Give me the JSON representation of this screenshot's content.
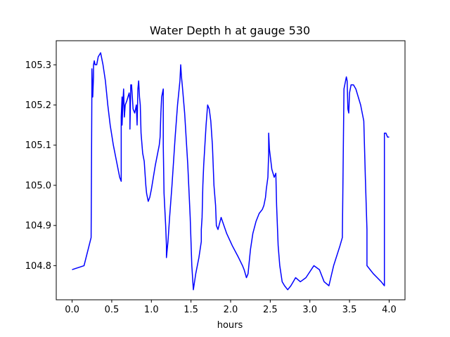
{
  "chart_data": {
    "type": "line",
    "title": "Water Depth h at gauge 530",
    "xlabel": "hours",
    "ylabel": "",
    "xlim": [
      -0.2,
      4.2
    ],
    "ylim": [
      104.715,
      105.36
    ],
    "xticks": [
      0.0,
      0.5,
      1.0,
      1.5,
      2.0,
      2.5,
      3.0,
      3.5,
      4.0
    ],
    "xtick_labels": [
      "0.0",
      "0.5",
      "1.0",
      "1.5",
      "2.0",
      "2.5",
      "3.0",
      "3.5",
      "4.0"
    ],
    "yticks": [
      104.8,
      104.9,
      105.0,
      105.1,
      105.2,
      105.3
    ],
    "ytick_labels": [
      "104.8",
      "104.9",
      "105.0",
      "105.1",
      "105.2",
      "105.3"
    ],
    "grid": false,
    "series": [
      {
        "color": "#0000ff",
        "x": [
          0.0,
          0.15,
          0.24,
          0.25,
          0.25,
          0.26,
          0.27,
          0.27,
          0.28,
          0.29,
          0.31,
          0.33,
          0.36,
          0.39,
          0.42,
          0.45,
          0.48,
          0.52,
          0.56,
          0.6,
          0.62,
          0.62,
          0.63,
          0.63,
          0.64,
          0.65,
          0.66,
          0.67,
          0.69,
          0.72,
          0.73,
          0.73,
          0.74,
          0.75,
          0.77,
          0.79,
          0.81,
          0.82,
          0.83,
          0.84,
          0.85,
          0.86,
          0.87,
          0.89,
          0.91,
          0.93,
          0.94,
          0.96,
          0.98,
          1.0,
          1.05,
          1.1,
          1.11,
          1.12,
          1.13,
          1.15,
          1.15,
          1.16,
          1.18,
          1.19,
          1.19,
          1.2,
          1.21,
          1.23,
          1.26,
          1.3,
          1.33,
          1.36,
          1.37,
          1.38,
          1.39,
          1.42,
          1.46,
          1.49,
          1.51,
          1.53,
          1.56,
          1.6,
          1.63,
          1.63,
          1.64,
          1.65,
          1.66,
          1.69,
          1.71,
          1.73,
          1.75,
          1.77,
          1.79,
          1.81,
          1.82,
          1.84,
          1.88,
          1.95,
          2.02,
          2.1,
          2.15,
          2.17,
          2.2,
          2.22,
          2.23,
          2.25,
          2.28,
          2.32,
          2.36,
          2.4,
          2.42,
          2.44,
          2.45,
          2.47,
          2.48,
          2.48,
          2.49,
          2.52,
          2.55,
          2.57,
          2.58,
          2.6,
          2.62,
          2.65,
          2.68,
          2.72,
          2.76,
          2.79,
          2.82,
          2.88,
          2.95,
          3.05,
          3.12,
          3.18,
          3.24,
          3.3,
          3.38,
          3.41,
          3.43,
          3.46,
          3.47,
          3.48,
          3.49,
          3.5,
          3.52,
          3.55,
          3.58,
          3.61,
          3.64,
          3.68,
          3.7,
          3.72,
          3.72,
          3.76,
          3.8,
          3.85,
          3.9,
          3.94,
          3.94,
          3.96,
          3.98,
          4.0
        ],
        "y": [
          104.79,
          104.8,
          104.87,
          105.25,
          105.29,
          105.22,
          105.27,
          105.3,
          105.31,
          105.3,
          105.3,
          105.32,
          105.33,
          105.3,
          105.26,
          105.2,
          105.15,
          105.1,
          105.06,
          105.02,
          105.01,
          105.17,
          105.22,
          105.15,
          105.2,
          105.24,
          105.17,
          105.2,
          105.21,
          105.23,
          105.21,
          105.14,
          105.25,
          105.25,
          105.19,
          105.18,
          105.2,
          105.15,
          105.24,
          105.26,
          105.22,
          105.2,
          105.13,
          105.08,
          105.06,
          105.0,
          104.98,
          104.96,
          104.97,
          104.99,
          105.05,
          105.1,
          105.12,
          105.18,
          105.22,
          105.24,
          105.1,
          104.98,
          104.9,
          104.85,
          104.82,
          104.84,
          104.86,
          104.92,
          105.0,
          105.12,
          105.2,
          105.26,
          105.3,
          105.27,
          105.25,
          105.18,
          105.05,
          104.92,
          104.8,
          104.74,
          104.78,
          104.82,
          104.86,
          104.89,
          104.92,
          105.0,
          105.05,
          105.15,
          105.2,
          105.19,
          105.16,
          105.1,
          105.0,
          104.95,
          104.9,
          104.89,
          104.92,
          104.88,
          104.85,
          104.82,
          104.8,
          104.79,
          104.77,
          104.78,
          104.8,
          104.84,
          104.88,
          104.91,
          104.93,
          104.94,
          104.95,
          104.97,
          104.99,
          105.02,
          105.08,
          105.13,
          105.09,
          105.04,
          105.02,
          105.03,
          104.95,
          104.85,
          104.8,
          104.76,
          104.75,
          104.74,
          104.75,
          104.76,
          104.77,
          104.76,
          104.77,
          104.8,
          104.79,
          104.76,
          104.75,
          104.8,
          104.85,
          104.87,
          105.24,
          105.27,
          105.26,
          105.19,
          105.18,
          105.23,
          105.25,
          105.25,
          105.24,
          105.22,
          105.2,
          105.16,
          105.02,
          104.89,
          104.8,
          104.79,
          104.78,
          104.77,
          104.76,
          104.75,
          105.13,
          105.13,
          105.12,
          105.12
        ]
      }
    ]
  }
}
